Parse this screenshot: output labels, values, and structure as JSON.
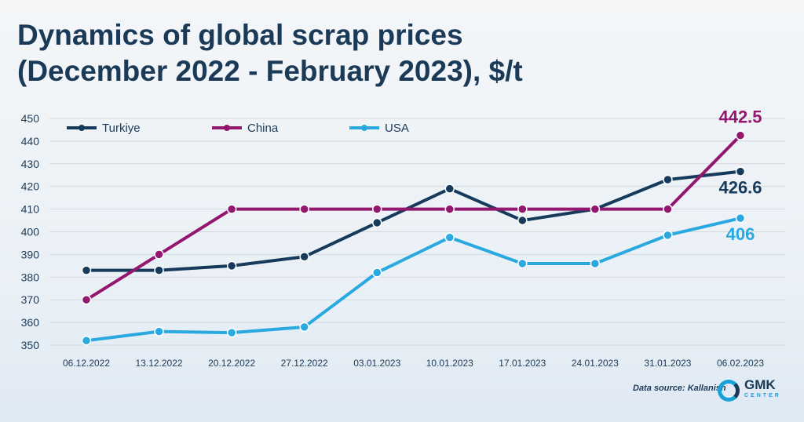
{
  "title_line1": "Dynamics of global scrap prices",
  "title_line2": "(December 2022 - February 2023), $/t",
  "source": "Data source: Kallanish",
  "logo": {
    "text": "GMK",
    "sub": "CENTER"
  },
  "chart_data": {
    "type": "line",
    "title": "Dynamics of global scrap prices (December 2022 - February 2023), $/t",
    "categories": [
      "06.12.2022",
      "13.12.2022",
      "20.12.2022",
      "27.12.2022",
      "03.01.2023",
      "10.01.2023",
      "17.01.2023",
      "24.01.2023",
      "31.01.2023",
      "06.02.2023"
    ],
    "ylim": [
      350,
      450
    ],
    "yticks": [
      350,
      360,
      370,
      380,
      390,
      400,
      410,
      420,
      430,
      440,
      450
    ],
    "grid": true,
    "legend": "top",
    "series": [
      {
        "name": "Turkiye",
        "color": "#163a5c",
        "values": [
          383,
          383,
          385,
          389,
          404,
          419,
          405,
          410,
          423,
          426.6
        ],
        "last_label": "426.6"
      },
      {
        "name": "China",
        "color": "#94176f",
        "values": [
          370,
          390,
          410,
          410,
          410,
          410,
          410,
          410,
          410,
          442.5
        ],
        "last_label": "442.5"
      },
      {
        "name": "USA",
        "color": "#2aa9e0",
        "values": [
          352,
          356,
          355.5,
          358,
          382,
          397.5,
          386,
          386,
          398.5,
          406
        ],
        "last_label": "406"
      }
    ]
  }
}
